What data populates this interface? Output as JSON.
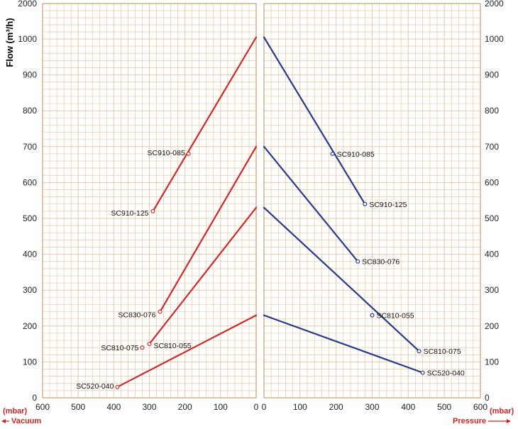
{
  "chart_data": {
    "type": "line",
    "ylabel": "Flow (m³/h)",
    "ylim": [
      0,
      2000
    ],
    "yticks": [
      0,
      100,
      200,
      300,
      400,
      500,
      600,
      700,
      800,
      900,
      1000,
      2000
    ],
    "grid": true,
    "colors": {
      "vacuum": "#cc2a2a",
      "pressure": "#243a8c",
      "grid": "#e7c9a2",
      "frame": "#c8a06a",
      "axis_text": "#cc2222"
    },
    "left_panel": {
      "label": "Vacuum",
      "unit": "(mbar)",
      "xlim": [
        600,
        0
      ],
      "xticks": [
        600,
        500,
        400,
        300,
        200,
        100,
        0
      ],
      "series": [
        {
          "name": "SC910-125",
          "x": [
            290,
            0
          ],
          "y": [
            520,
            1050
          ]
        },
        {
          "name": "SC830-076",
          "x": [
            270,
            0
          ],
          "y": [
            240,
            700
          ]
        },
        {
          "name": "SC810-055",
          "x": [
            300,
            0
          ],
          "y": [
            150,
            530
          ]
        },
        {
          "name": "SC520-040",
          "x": [
            390,
            0
          ],
          "y": [
            30,
            230
          ]
        }
      ],
      "points": [
        {
          "label": "SC910-085",
          "x": 190,
          "y": 680
        },
        {
          "label": "SC910-125",
          "x": 290,
          "y": 520
        },
        {
          "label": "SC830-076",
          "x": 270,
          "y": 240
        },
        {
          "label": "SC810-055",
          "x": 300,
          "y": 150
        },
        {
          "label": "SC810-075",
          "x": 320,
          "y": 140
        },
        {
          "label": "SC520-040",
          "x": 390,
          "y": 30
        }
      ]
    },
    "right_panel": {
      "label": "Pressure",
      "unit": "(mbar)",
      "xlim": [
        0,
        600
      ],
      "xticks": [
        0,
        100,
        200,
        300,
        400,
        500,
        600
      ],
      "series": [
        {
          "name": "SC910-125",
          "x": [
            0,
            280
          ],
          "y": [
            1050,
            540
          ]
        },
        {
          "name": "SC830-076",
          "x": [
            0,
            260
          ],
          "y": [
            700,
            380
          ]
        },
        {
          "name": "SC810-075",
          "x": [
            0,
            430
          ],
          "y": [
            530,
            130
          ]
        },
        {
          "name": "SC520-040",
          "x": [
            0,
            440
          ],
          "y": [
            230,
            70
          ]
        }
      ],
      "points": [
        {
          "label": "SC910-085",
          "x": 190,
          "y": 680
        },
        {
          "label": "SC910-125",
          "x": 280,
          "y": 540
        },
        {
          "label": "SC830-076",
          "x": 260,
          "y": 380
        },
        {
          "label": "SC810-055",
          "x": 300,
          "y": 230
        },
        {
          "label": "SC810-075",
          "x": 430,
          "y": 130
        },
        {
          "label": "SC520-040",
          "x": 440,
          "y": 70
        }
      ]
    }
  }
}
